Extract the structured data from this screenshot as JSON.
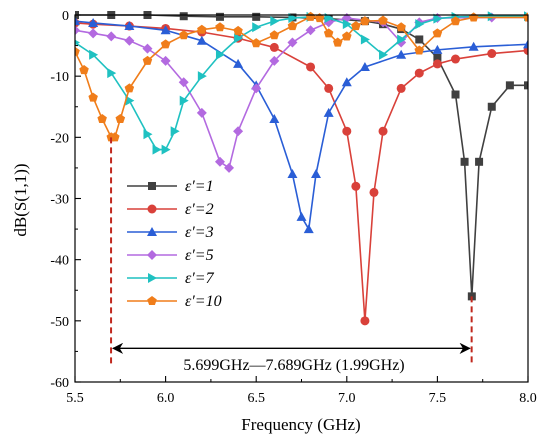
{
  "chart_data": {
    "type": "line",
    "xlabel": "Frequency (GHz)",
    "ylabel": "dB(S(1,1))",
    "xlim": [
      5.5,
      8.0
    ],
    "ylim": [
      -60,
      0
    ],
    "x_ticks": [
      5.5,
      6.0,
      6.5,
      7.0,
      7.5,
      8.0
    ],
    "x_tick_labels": [
      "5.5",
      "6.0",
      "6.5",
      "7.0",
      "7.5",
      "8.0"
    ],
    "y_ticks": [
      0,
      -10,
      -20,
      -30,
      -40,
      -50,
      -60
    ],
    "y_tick_labels": [
      "0",
      "-10",
      "-20",
      "-30",
      "-40",
      "-50",
      "-60"
    ],
    "grid": false,
    "legend_position": "center-left",
    "series": [
      {
        "name": "ε′=1",
        "color": "#404040",
        "marker": "square",
        "x": [
          5.5,
          5.7,
          5.9,
          6.1,
          6.3,
          6.5,
          6.7,
          6.9,
          7.1,
          7.2,
          7.3,
          7.4,
          7.5,
          7.6,
          7.65,
          7.69,
          7.73,
          7.8,
          7.9,
          8.0
        ],
        "y": [
          0,
          0,
          0,
          -0.2,
          -0.3,
          -0.3,
          -0.4,
          -0.6,
          -1.0,
          -1.5,
          -2.3,
          -4.0,
          -7.0,
          -13,
          -24,
          -46,
          -24,
          -15,
          -11.5,
          -11.5
        ]
      },
      {
        "name": "ε′=2",
        "color": "#d9413a",
        "marker": "circle",
        "x": [
          5.5,
          5.6,
          5.8,
          6.0,
          6.2,
          6.4,
          6.6,
          6.8,
          6.9,
          7.0,
          7.05,
          7.1,
          7.15,
          7.2,
          7.3,
          7.4,
          7.5,
          7.6,
          7.8,
          8.0
        ],
        "y": [
          -1.3,
          -1.5,
          -1.8,
          -2.2,
          -2.8,
          -3.8,
          -5.3,
          -8.5,
          -12,
          -19,
          -28,
          -50,
          -29,
          -19,
          -12,
          -9.5,
          -8.0,
          -7.2,
          -6.3,
          -5.8
        ]
      },
      {
        "name": "ε′=3",
        "color": "#2a5ed6",
        "marker": "triangle-up",
        "x": [
          5.5,
          5.6,
          5.8,
          6.0,
          6.2,
          6.4,
          6.5,
          6.6,
          6.7,
          6.75,
          6.79,
          6.83,
          6.9,
          7.0,
          7.1,
          7.3,
          7.5,
          7.7,
          8.0
        ],
        "y": [
          -1.0,
          -1.3,
          -1.8,
          -2.5,
          -4.2,
          -8.0,
          -11.5,
          -17,
          -26,
          -33,
          -35,
          -26,
          -16,
          -11,
          -8.5,
          -6.5,
          -5.7,
          -5.2,
          -4.8
        ]
      },
      {
        "name": "ε′=5",
        "color": "#b36ae0",
        "marker": "diamond",
        "x": [
          5.5,
          5.6,
          5.7,
          5.8,
          5.9,
          6.0,
          6.1,
          6.2,
          6.3,
          6.35,
          6.4,
          6.5,
          6.6,
          6.7,
          6.8,
          6.9,
          7.0,
          7.2,
          7.3,
          7.4,
          7.5,
          7.8,
          8.0
        ],
        "y": [
          -2.5,
          -3.0,
          -3.5,
          -4.2,
          -5.5,
          -7.5,
          -11,
          -16,
          -24,
          -25,
          -19,
          -12,
          -7.5,
          -4.5,
          -2.5,
          -1.2,
          -0.5,
          -1.2,
          -4.5,
          -1.2,
          -0.5,
          -0.4,
          -0.4
        ]
      },
      {
        "name": "ε′=7",
        "color": "#1fc1c1",
        "marker": "triangle-right",
        "x": [
          5.5,
          5.6,
          5.7,
          5.8,
          5.9,
          5.95,
          6.0,
          6.05,
          6.1,
          6.2,
          6.3,
          6.4,
          6.5,
          6.6,
          6.7,
          6.8,
          6.9,
          7.0,
          7.1,
          7.2,
          7.3,
          7.4,
          7.5,
          7.6,
          7.8,
          8.0
        ],
        "y": [
          -4.5,
          -6.5,
          -9.5,
          -14,
          -19.5,
          -22,
          -22,
          -19,
          -14,
          -10,
          -6.5,
          -3.8,
          -2.0,
          -1.0,
          -0.5,
          -0.3,
          -0.5,
          -1.5,
          -4.0,
          -6.5,
          -4.0,
          -1.5,
          -0.6,
          -0.3,
          -0.2,
          -0.2
        ]
      },
      {
        "name": "ε′=10",
        "color": "#f07d1a",
        "marker": "pentagon",
        "x": [
          5.5,
          5.55,
          5.6,
          5.65,
          5.7,
          5.72,
          5.75,
          5.8,
          5.9,
          6.0,
          6.1,
          6.2,
          6.3,
          6.4,
          6.5,
          6.6,
          6.7,
          6.8,
          6.85,
          6.9,
          6.95,
          7.0,
          7.05,
          7.1,
          7.2,
          7.3,
          7.4,
          7.5,
          7.6,
          7.7,
          8.0
        ],
        "y": [
          -6.0,
          -9.0,
          -13.5,
          -17,
          -20,
          -20,
          -17,
          -12,
          -7.5,
          -4.8,
          -3.3,
          -2.4,
          -2.0,
          -2.6,
          -4.6,
          -3.3,
          -1.8,
          -0.3,
          -0.5,
          -3.0,
          -4.5,
          -3.5,
          -1.8,
          -1.0,
          -0.9,
          -2.0,
          -5.8,
          -3.0,
          -1.0,
          -0.4,
          -0.4
        ]
      }
    ],
    "band_lines": [
      {
        "x": 5.699,
        "from": -20,
        "to": -57,
        "color": "#c0281e"
      },
      {
        "x": 7.689,
        "from": -46,
        "to": -57,
        "color": "#c0281e"
      }
    ],
    "arrow": {
      "x1": 5.699,
      "x2": 7.689,
      "y": -54.5
    },
    "annotation": "5.699GHz—7.689GHz   (1.99GHz)"
  }
}
